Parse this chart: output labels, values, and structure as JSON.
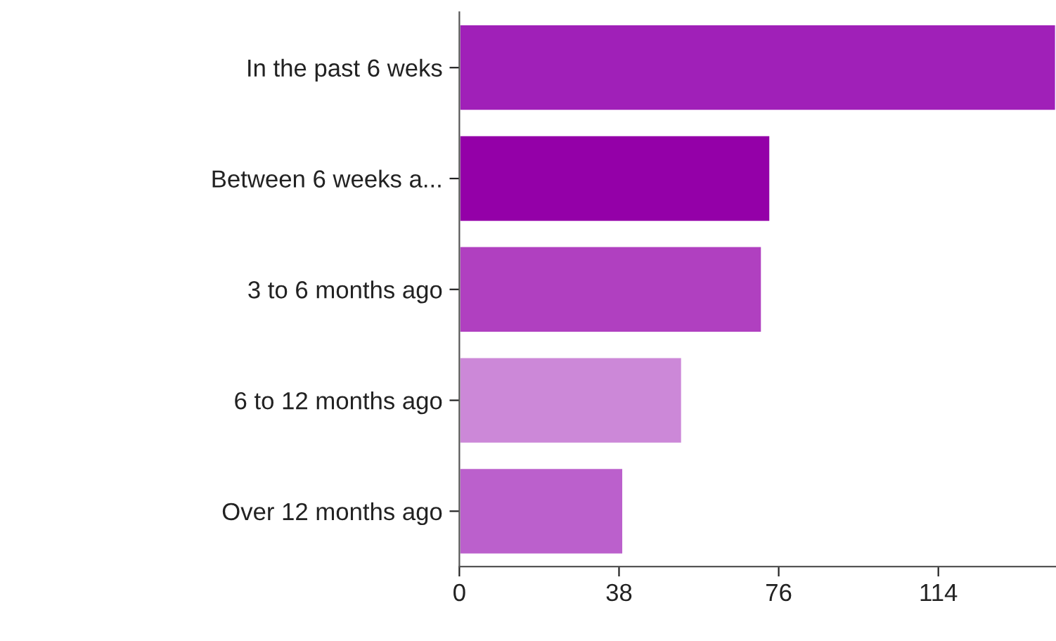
{
  "chart_data": {
    "type": "bar",
    "orientation": "horizontal",
    "categories": [
      "In the past 6 weks",
      "Between 6 weeks a...",
      "3 to 6 months ago",
      "6 to 12 months ago",
      "Over 12 months ago"
    ],
    "values": [
      142,
      74,
      72,
      53,
      39
    ],
    "colors": [
      "#a020b8",
      "#9400a8",
      "#b040c0",
      "#cc88d8",
      "#bb60cc"
    ],
    "xlim": [
      0,
      142
    ],
    "xticks": [
      0,
      38,
      76,
      114
    ],
    "grid": false,
    "legend": false
  }
}
